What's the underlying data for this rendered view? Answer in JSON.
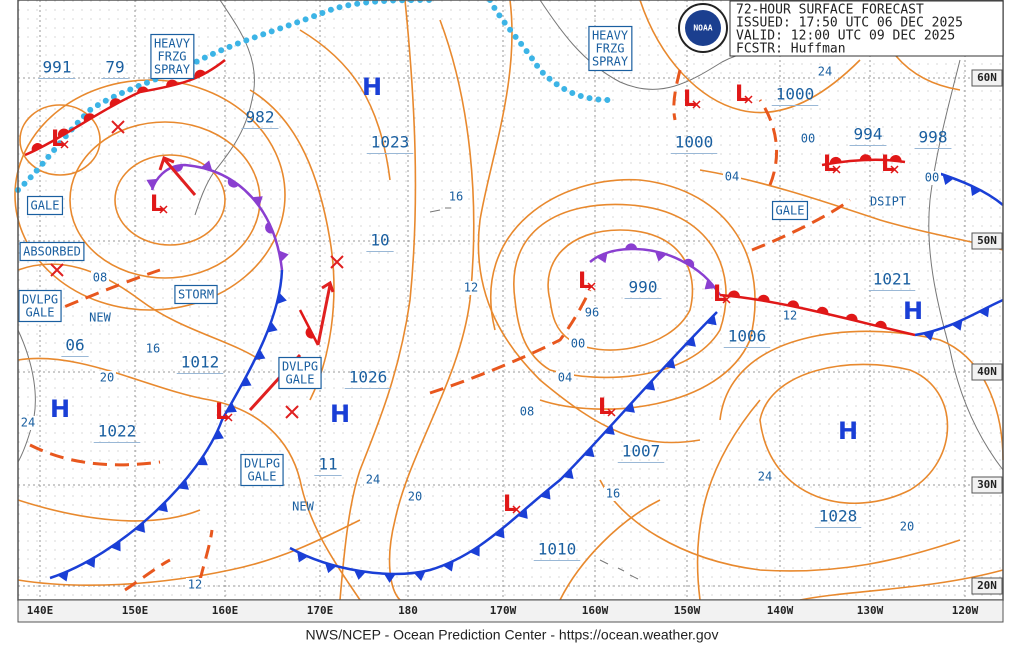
{
  "header": {
    "title": "72-HOUR SURFACE FORECAST",
    "issued": "ISSUED: 17:50 UTC 06 DEC 2025",
    "valid": "VALID:  12:00 UTC 09 DEC 2025",
    "forecaster": "FCSTR:  Huffman",
    "logo": "NOAA"
  },
  "footer": "NWS/NCEP - Ocean Prediction Center - https://ocean.weather.gov",
  "longitude_labels": [
    "140E",
    "150E",
    "160E",
    "170E",
    "180",
    "170W",
    "160W",
    "150W",
    "140W",
    "130W",
    "120W"
  ],
  "latitude_labels": [
    "60N",
    "50N",
    "40N",
    "30N",
    "20N"
  ],
  "symbols": {
    "high": "H",
    "low": "L"
  },
  "center_pressures": [
    "991",
    "79",
    "982",
    "1023",
    "10",
    "1012",
    "06",
    "1022",
    "1026",
    "11",
    "990",
    "1000",
    "1000",
    "994",
    "998",
    "1006",
    "1007",
    "1021",
    "1010",
    "1028"
  ],
  "isobar_labels": [
    "16",
    "12",
    "96",
    "00",
    "04",
    "08",
    "16",
    "20",
    "24",
    "24",
    "20",
    "12",
    "08",
    "16",
    "20",
    "24",
    "24",
    "00",
    "04",
    "12",
    "00"
  ],
  "warning_boxes": [
    [
      "HEAVY",
      "FRZG",
      "SPRAY"
    ],
    [
      "HEAVY",
      "FRZG",
      "SPRAY"
    ],
    [
      "GALE"
    ],
    [
      "ABSORBED"
    ],
    [
      "DVLPG",
      "GALE"
    ],
    [
      "STORM"
    ],
    [
      "DVLPG",
      "GALE"
    ],
    [
      "DVLPG",
      "GALE"
    ],
    [
      "GALE"
    ]
  ],
  "notes": [
    "NEW",
    "NEW",
    "DSIPT"
  ]
}
